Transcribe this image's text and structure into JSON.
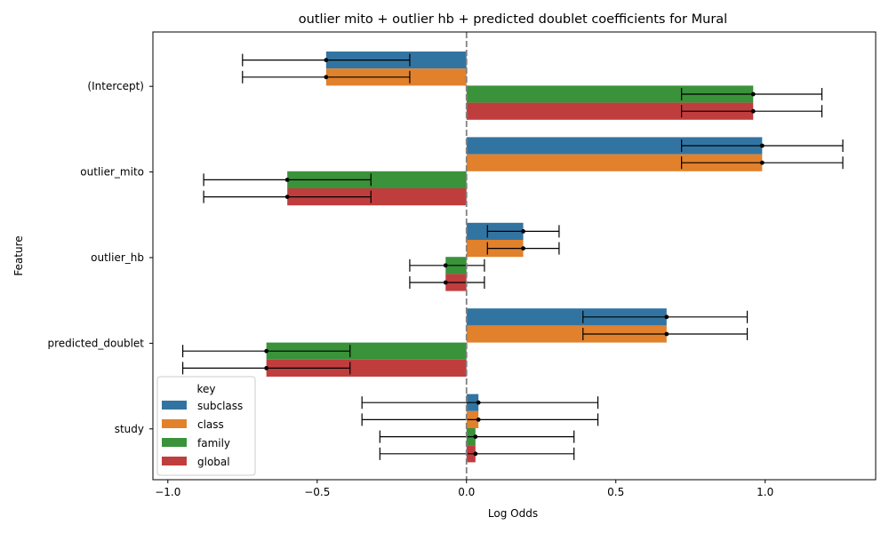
{
  "chart_data": {
    "type": "bar",
    "orientation": "horizontal",
    "title": "outlier mito + outlier hb + predicted doublet coefficients for Mural",
    "xlabel": "Log Odds",
    "ylabel": "Feature",
    "xlim": [
      -1.05,
      1.37
    ],
    "xticks": [
      -1.0,
      -0.5,
      0.0,
      0.5,
      1.0
    ],
    "xtick_labels": [
      "−1.0",
      "−0.5",
      "0.0",
      "0.5",
      "1.0"
    ],
    "reference_line": {
      "x": 0,
      "style": "dashed",
      "color": "#808080"
    },
    "categories": [
      "(Intercept)",
      "outlier_mito",
      "outlier_hb",
      "predicted_doublet",
      "study"
    ],
    "legend": {
      "title": "key",
      "position": "lower-left"
    },
    "series": [
      {
        "name": "subclass",
        "color": "#3274a1",
        "values": [
          -0.47,
          0.99,
          0.19,
          0.67,
          0.04
        ],
        "ci_low": [
          -0.75,
          0.72,
          0.07,
          0.39,
          -0.35
        ],
        "ci_high": [
          -0.19,
          1.26,
          0.31,
          0.94,
          0.44
        ]
      },
      {
        "name": "class",
        "color": "#e1812c",
        "values": [
          -0.47,
          0.99,
          0.19,
          0.67,
          0.04
        ],
        "ci_low": [
          -0.75,
          0.72,
          0.07,
          0.39,
          -0.35
        ],
        "ci_high": [
          -0.19,
          1.26,
          0.31,
          0.94,
          0.44
        ]
      },
      {
        "name": "family",
        "color": "#3a923a",
        "values": [
          0.96,
          -0.6,
          -0.07,
          -0.67,
          0.03
        ],
        "ci_low": [
          0.72,
          -0.88,
          -0.19,
          -0.95,
          -0.29
        ],
        "ci_high": [
          1.19,
          -0.32,
          0.06,
          -0.39,
          0.36
        ]
      },
      {
        "name": "global",
        "color": "#c03d3e",
        "values": [
          0.96,
          -0.6,
          -0.07,
          -0.67,
          0.03
        ],
        "ci_low": [
          0.72,
          -0.88,
          -0.19,
          -0.95,
          -0.29
        ],
        "ci_high": [
          1.19,
          -0.32,
          0.06,
          -0.39,
          0.36
        ]
      }
    ]
  }
}
